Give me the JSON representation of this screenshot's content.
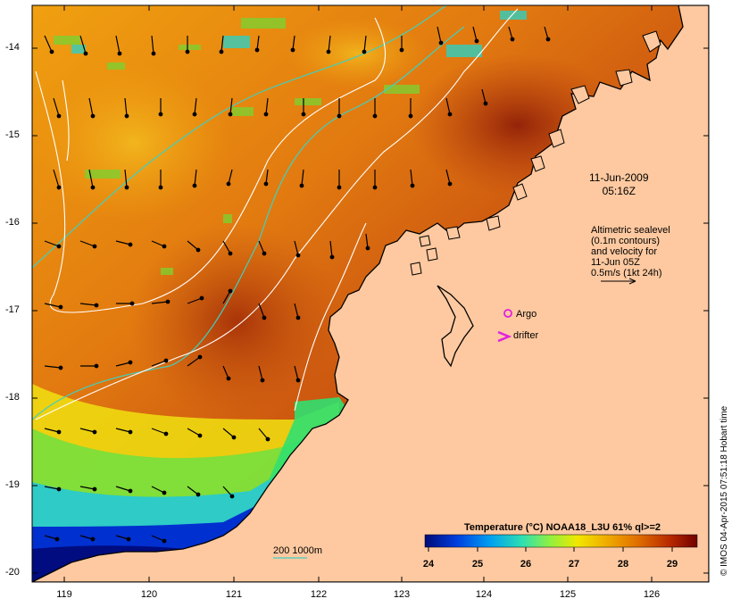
{
  "map": {
    "date_line1": "11-Jun-2009",
    "date_line2": "05:16Z",
    "altimetry_lines": [
      "Altimetric sealevel",
      "(0.1m contours)",
      "and velocity for",
      "11-Jun 05Z",
      "0.5m/s (1kt 24h)"
    ],
    "argo_label": "Argo",
    "drifter_label": "drifter",
    "depth_label": "200  1000m",
    "credit": "© IMOS 04-Apr-2015 07:51:18 Hobart time",
    "colors": {
      "land": "#fec9a0",
      "coast": "#000000",
      "argo": "#e020e0",
      "isobath": "#40d0c0"
    }
  },
  "axes": {
    "lat_labels": [
      "-14",
      "-15",
      "-16",
      "-17",
      "-18",
      "-19",
      "-20"
    ],
    "lon_labels": [
      "119",
      "120",
      "121",
      "122",
      "123",
      "124",
      "125",
      "126"
    ]
  },
  "colorbar": {
    "title": "Temperature (°C) NOAA18_L3U 61% ql>=2",
    "ticks": [
      "24",
      "25",
      "26",
      "27",
      "28",
      "29"
    ],
    "min": 23.7,
    "max": 29.5,
    "colors": [
      "#000a78",
      "#0040e0",
      "#00b0f0",
      "#30e0a0",
      "#b8f020",
      "#f0e000",
      "#f0a000",
      "#e06000",
      "#b02000",
      "#700000"
    ]
  }
}
